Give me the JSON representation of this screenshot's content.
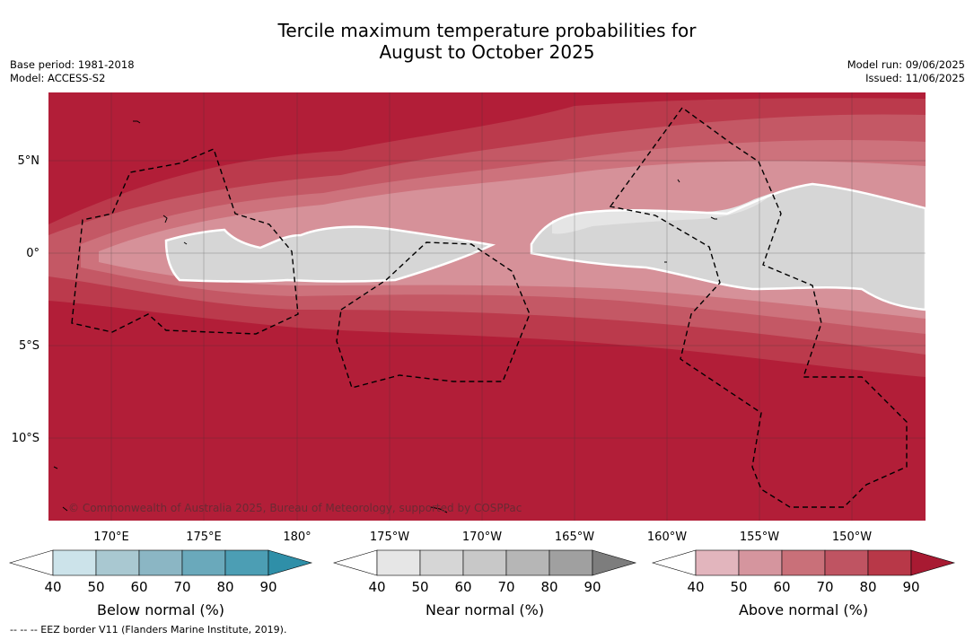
{
  "title_line1": "Tercile maximum temperature probabilities for",
  "title_line2": "August to October 2025",
  "meta_left": [
    "Base period: 1981-2018",
    "Model: ACCESS-S2"
  ],
  "meta_right": [
    "Model run: 09/06/2025",
    "Issued: 11/06/2025"
  ],
  "lat_labels": [
    "5°N",
    "0°",
    "5°S",
    "10°S"
  ],
  "lon_labels": [
    "170°E",
    "175°E",
    "180°",
    "175°W",
    "170°W",
    "165°W",
    "160°W",
    "155°W",
    "150°W"
  ],
  "copyright": "© Commonwealth of Australia 2025, Bureau of Meteorology, supported by COSPPac",
  "footnote": "-- -- -- EEZ border V11 (Flanders Marine Institute, 2019).",
  "colorbars": [
    {
      "label": "Below normal (%)",
      "ticks": [
        "40",
        "50",
        "60",
        "70",
        "80",
        "90"
      ],
      "colors": [
        "#ffffff",
        "#cce3ea",
        "#a9c8d1",
        "#8bb6c4",
        "#6aa9bb",
        "#4c9eb4",
        "#2f8fa8"
      ]
    },
    {
      "label": "Near normal (%)",
      "ticks": [
        "40",
        "50",
        "60",
        "70",
        "80",
        "90"
      ],
      "colors": [
        "#ffffff",
        "#e6e6e6",
        "#d6d6d6",
        "#c8c8c8",
        "#b6b6b6",
        "#a0a0a0",
        "#7d7d7d"
      ]
    },
    {
      "label": "Above normal (%)",
      "ticks": [
        "40",
        "50",
        "60",
        "70",
        "80",
        "90"
      ],
      "colors": [
        "#ffffff",
        "#e2b5bd",
        "#d5959e",
        "#c97079",
        "#bf5462",
        "#b83848",
        "#a81a32"
      ]
    }
  ],
  "map_colors": {
    "above_90": "#b21e38",
    "above_80": "#bb3a4c",
    "above_70": "#c45865",
    "above_60": "#cd727c",
    "above_50": "#d69199",
    "near_40": "#e5e5e5",
    "near_50": "#d6d6d6"
  }
}
